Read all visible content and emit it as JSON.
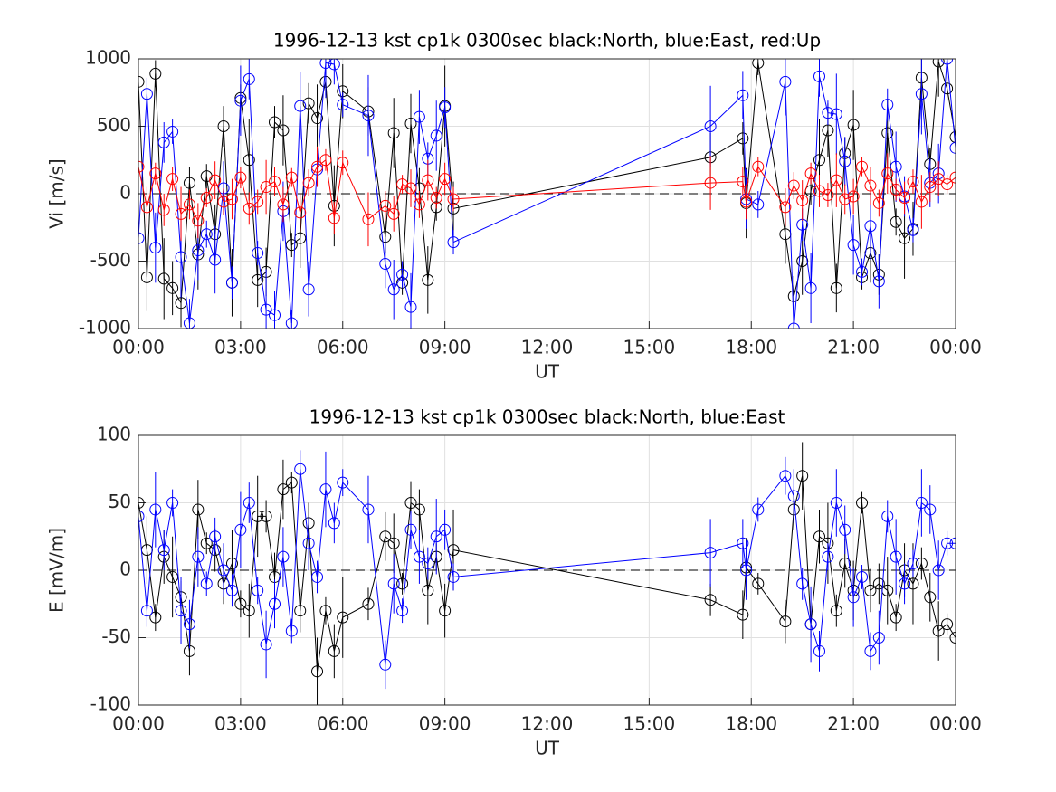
{
  "chart_data": [
    {
      "type": "line",
      "title": "1996-12-13 kst cp1k 0300sec black:North, blue:East, red:Up",
      "xlabel": "UT",
      "ylabel": "Vi [m/s]",
      "x": [
        0.0,
        0.25,
        0.5,
        0.75,
        1.0,
        1.25,
        1.5,
        1.75,
        2.0,
        2.25,
        2.5,
        2.75,
        3.0,
        3.25,
        3.5,
        3.75,
        4.0,
        4.25,
        4.5,
        4.75,
        5.0,
        5.25,
        5.5,
        5.75,
        6.0,
        6.75,
        7.25,
        7.5,
        7.75,
        8.0,
        8.25,
        8.5,
        8.75,
        9.0,
        9.25,
        16.8,
        17.75,
        17.85,
        18.2,
        19.0,
        19.25,
        19.5,
        19.75,
        20.0,
        20.25,
        20.5,
        20.75,
        21.0,
        21.25,
        21.5,
        21.75,
        22.0,
        22.25,
        22.5,
        22.75,
        23.0,
        23.25,
        23.5,
        23.75,
        24.0
      ],
      "xlim": [
        0,
        24
      ],
      "xticks": [
        {
          "value": 0,
          "label": "00:00"
        },
        {
          "value": 3,
          "label": "03:00"
        },
        {
          "value": 6,
          "label": "06:00"
        },
        {
          "value": 9,
          "label": "09:00"
        },
        {
          "value": 12,
          "label": "12:00"
        },
        {
          "value": 15,
          "label": "15:00"
        },
        {
          "value": 18,
          "label": "18:00"
        },
        {
          "value": 21,
          "label": "21:00"
        },
        {
          "value": 24,
          "label": "00:00"
        }
      ],
      "ylim": [
        -1000,
        1000
      ],
      "yticks": [
        -1000,
        -500,
        0,
        500,
        1000
      ],
      "grid": true,
      "hline": 0,
      "series": [
        {
          "color": "#000000",
          "values": [
            830,
            -620,
            890,
            -630,
            -700,
            -810,
            80,
            -450,
            130,
            -300,
            500,
            -660,
            710,
            250,
            -640,
            -580,
            530,
            470,
            -380,
            -330,
            670,
            560,
            830,
            -90,
            760,
            610,
            -320,
            450,
            -660,
            520,
            40,
            -640,
            -100,
            650,
            -110,
            270,
            410,
            -70,
            970,
            -300,
            -760,
            -500,
            20,
            250,
            470,
            -700,
            300,
            510,
            -620,
            -440,
            -600,
            450,
            -210,
            -330,
            -260,
            860,
            220,
            980,
            780,
            420
          ],
          "errors": [
            150,
            250,
            100,
            300,
            200,
            180,
            120,
            260,
            90,
            220,
            150,
            250,
            100,
            300,
            200,
            180,
            120,
            260,
            90,
            220,
            150,
            250,
            100,
            300,
            200,
            180,
            120,
            260,
            90,
            220,
            150,
            250,
            100,
            300,
            200,
            180,
            120,
            260,
            90,
            220,
            150,
            250,
            100,
            300,
            200,
            180,
            120,
            260,
            90,
            220,
            150,
            250,
            100,
            300,
            200,
            180,
            120,
            260,
            90,
            220
          ]
        },
        {
          "color": "#0000ff",
          "values": [
            -330,
            740,
            -400,
            380,
            460,
            -470,
            -960,
            -420,
            -300,
            -490,
            40,
            -660,
            690,
            850,
            -440,
            -860,
            -900,
            -130,
            -960,
            650,
            -710,
            180,
            970,
            960,
            660,
            580,
            -520,
            -710,
            -600,
            -840,
            570,
            260,
            430,
            640,
            -360,
            500,
            730,
            -40,
            -80,
            830,
            -1000,
            -230,
            -700,
            870,
            600,
            590,
            240,
            -380,
            -580,
            -240,
            -650,
            660,
            200,
            -20,
            -270,
            740,
            80,
            150,
            1000,
            340
          ],
          "errors": [
            200,
            120,
            260,
            150,
            90,
            300,
            180,
            220,
            100,
            250,
            200,
            120,
            260,
            150,
            90,
            300,
            180,
            220,
            100,
            250,
            200,
            120,
            260,
            150,
            90,
            300,
            180,
            220,
            100,
            250,
            200,
            120,
            260,
            150,
            90,
            300,
            180,
            220,
            100,
            250,
            200,
            120,
            260,
            150,
            90,
            300,
            180,
            220,
            100,
            250,
            200,
            120,
            260,
            150,
            90,
            300,
            180,
            220,
            100,
            250
          ]
        },
        {
          "color": "#ff0000",
          "values": [
            200,
            -100,
            150,
            -120,
            110,
            -150,
            -80,
            -200,
            -30,
            100,
            -60,
            -40,
            120,
            -110,
            -60,
            50,
            90,
            -80,
            120,
            -140,
            80,
            200,
            250,
            -180,
            230,
            -190,
            -90,
            -150,
            70,
            40,
            -80,
            100,
            -30,
            110,
            -40,
            80,
            90,
            -60,
            200,
            -100,
            60,
            -50,
            150,
            20,
            -10,
            100,
            -40,
            -20,
            200,
            60,
            -70,
            150,
            30,
            -30,
            90,
            -60,
            50,
            110,
            70,
            120
          ],
          "errors": [
            100,
            150,
            80,
            120,
            90,
            200,
            110,
            130,
            70,
            140,
            100,
            150,
            80,
            120,
            90,
            200,
            110,
            130,
            70,
            140,
            100,
            150,
            80,
            120,
            90,
            200,
            110,
            130,
            70,
            140,
            100,
            150,
            80,
            120,
            90,
            200,
            110,
            130,
            70,
            140,
            100,
            150,
            80,
            120,
            90,
            200,
            110,
            130,
            70,
            140,
            100,
            150,
            80,
            120,
            90,
            200,
            110,
            130,
            70,
            140
          ]
        }
      ]
    },
    {
      "type": "line",
      "title": "1996-12-13 kst cp1k 0300sec black:North, blue:East",
      "xlabel": "UT",
      "ylabel": "E [mV/m]",
      "x": [
        0.0,
        0.25,
        0.5,
        0.75,
        1.0,
        1.25,
        1.5,
        1.75,
        2.0,
        2.25,
        2.5,
        2.75,
        3.0,
        3.25,
        3.5,
        3.75,
        4.0,
        4.25,
        4.5,
        4.75,
        5.0,
        5.25,
        5.5,
        5.75,
        6.0,
        6.75,
        7.25,
        7.5,
        7.75,
        8.0,
        8.25,
        8.5,
        8.75,
        9.0,
        9.25,
        16.8,
        17.75,
        17.85,
        18.2,
        19.0,
        19.25,
        19.5,
        19.75,
        20.0,
        20.25,
        20.5,
        20.75,
        21.0,
        21.25,
        21.5,
        21.75,
        22.0,
        22.25,
        22.5,
        22.75,
        23.0,
        23.25,
        23.5,
        23.75,
        24.0
      ],
      "xlim": [
        0,
        24
      ],
      "xticks": [
        {
          "value": 0,
          "label": "00:00"
        },
        {
          "value": 3,
          "label": "03:00"
        },
        {
          "value": 6,
          "label": "06:00"
        },
        {
          "value": 9,
          "label": "09:00"
        },
        {
          "value": 12,
          "label": "12:00"
        },
        {
          "value": 15,
          "label": "15:00"
        },
        {
          "value": 18,
          "label": "18:00"
        },
        {
          "value": 21,
          "label": "21:00"
        },
        {
          "value": 24,
          "label": "00:00"
        }
      ],
      "ylim": [
        -100,
        100
      ],
      "yticks": [
        -100,
        -50,
        0,
        50,
        100
      ],
      "grid": true,
      "hline": 0,
      "series": [
        {
          "color": "#000000",
          "values": [
            50,
            15,
            -35,
            10,
            -5,
            -20,
            -60,
            45,
            20,
            15,
            -10,
            5,
            -25,
            -30,
            40,
            40,
            -5,
            60,
            65,
            -30,
            35,
            -75,
            -30,
            -60,
            -35,
            -25,
            25,
            20,
            -10,
            50,
            45,
            -15,
            10,
            -30,
            15,
            -22,
            -33,
            2,
            -10,
            -38,
            45,
            70,
            -40,
            25,
            20,
            -30,
            5,
            -15,
            50,
            -15,
            -10,
            -15,
            -35,
            0,
            -10,
            5,
            -20,
            -45,
            -40,
            -50
          ],
          "errors": [
            15,
            25,
            10,
            20,
            30,
            12,
            18,
            22,
            8,
            16,
            15,
            25,
            10,
            20,
            30,
            12,
            18,
            22,
            8,
            16,
            15,
            25,
            10,
            20,
            30,
            12,
            18,
            22,
            8,
            16,
            15,
            25,
            10,
            20,
            30,
            12,
            18,
            22,
            8,
            16,
            15,
            25,
            10,
            20,
            30,
            12,
            18,
            22,
            8,
            16,
            15,
            25,
            10,
            20,
            30,
            12,
            18,
            22,
            8,
            16
          ]
        },
        {
          "color": "#0000ff",
          "values": [
            40,
            -30,
            45,
            15,
            50,
            -30,
            -40,
            10,
            -10,
            25,
            0,
            -15,
            30,
            50,
            -15,
            -55,
            -25,
            10,
            -45,
            75,
            20,
            -5,
            60,
            35,
            65,
            45,
            -70,
            -10,
            -30,
            30,
            10,
            5,
            25,
            30,
            -5,
            13,
            20,
            0,
            45,
            70,
            55,
            -10,
            -40,
            -60,
            10,
            50,
            30,
            -20,
            -5,
            -60,
            -50,
            40,
            10,
            -10,
            5,
            50,
            45,
            0,
            20,
            20
          ],
          "errors": [
            20,
            12,
            28,
            15,
            10,
            25,
            18,
            22,
            9,
            14,
            20,
            12,
            28,
            15,
            10,
            25,
            18,
            22,
            9,
            14,
            20,
            12,
            28,
            15,
            10,
            25,
            18,
            22,
            9,
            14,
            20,
            12,
            28,
            15,
            10,
            25,
            18,
            22,
            9,
            14,
            20,
            12,
            28,
            15,
            10,
            25,
            18,
            22,
            9,
            14,
            20,
            12,
            28,
            15,
            10,
            25,
            18,
            22,
            9,
            14
          ]
        }
      ]
    }
  ]
}
